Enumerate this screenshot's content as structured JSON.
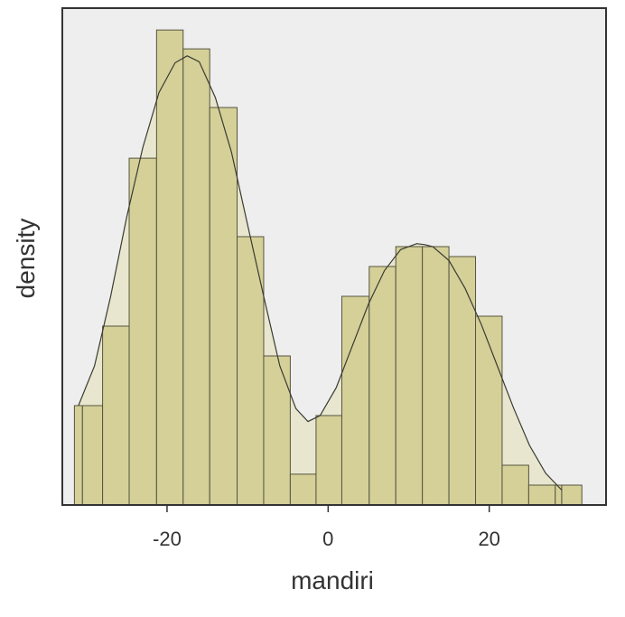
{
  "chart_data": {
    "type": "histogram",
    "xlabel": "mandiri",
    "ylabel": "density",
    "xlim": [
      -33,
      34.5
    ],
    "ylim": [
      0,
      0.05
    ],
    "x_ticks": [
      "-20",
      "0",
      "20"
    ],
    "x_tick_values": [
      -20,
      0,
      20
    ],
    "bins": [
      {
        "start": -31.5,
        "end": -30.5,
        "value": 0.01
      },
      {
        "start": -30.5,
        "end": -28.0,
        "value": 0.01
      },
      {
        "start": -28.0,
        "end": -24.7,
        "value": 0.018
      },
      {
        "start": -24.7,
        "end": -21.3,
        "value": 0.0349
      },
      {
        "start": -21.3,
        "end": -18.0,
        "value": 0.0478
      },
      {
        "start": -18.0,
        "end": -14.7,
        "value": 0.0459
      },
      {
        "start": -14.7,
        "end": -11.3,
        "value": 0.04
      },
      {
        "start": -11.3,
        "end": -8.0,
        "value": 0.027
      },
      {
        "start": -8.0,
        "end": -4.7,
        "value": 0.015
      },
      {
        "start": -4.7,
        "end": -1.5,
        "value": 0.0031
      },
      {
        "start": -1.5,
        "end": 1.7,
        "value": 0.009
      },
      {
        "start": 1.7,
        "end": 5.1,
        "value": 0.021
      },
      {
        "start": 5.1,
        "end": 8.4,
        "value": 0.024
      },
      {
        "start": 8.4,
        "end": 11.7,
        "value": 0.026
      },
      {
        "start": 11.7,
        "end": 15.0,
        "value": 0.026
      },
      {
        "start": 15.0,
        "end": 18.3,
        "value": 0.025
      },
      {
        "start": 18.3,
        "end": 21.6,
        "value": 0.019
      },
      {
        "start": 21.6,
        "end": 24.9,
        "value": 0.004
      },
      {
        "start": 24.9,
        "end": 28.2,
        "value": 0.002
      },
      {
        "start": 28.2,
        "end": 29.0,
        "value": 0.002
      },
      {
        "start": 29.0,
        "end": 31.5,
        "value": 0.002
      }
    ],
    "density_curve": {
      "x": [
        -31,
        -29,
        -27,
        -25,
        -23,
        -21,
        -19,
        -17.5,
        -16,
        -14,
        -12,
        -10,
        -8,
        -6,
        -4,
        -2.5,
        -1,
        1,
        3,
        5,
        7,
        9,
        11,
        12,
        13,
        15,
        17,
        19,
        21,
        23,
        25,
        27,
        29
      ],
      "y": [
        0.01,
        0.014,
        0.021,
        0.029,
        0.036,
        0.0415,
        0.0445,
        0.0452,
        0.0446,
        0.041,
        0.0355,
        0.0282,
        0.021,
        0.014,
        0.0097,
        0.0084,
        0.009,
        0.0118,
        0.016,
        0.0202,
        0.0236,
        0.0257,
        0.0263,
        0.0262,
        0.026,
        0.0246,
        0.0218,
        0.0182,
        0.014,
        0.0098,
        0.006,
        0.0032,
        0.0015
      ]
    },
    "grid": false,
    "legend": "none"
  },
  "colors": {
    "panel_background": "#eeeeee",
    "bar_fill": "#d4d098",
    "bar_stroke": "#565440",
    "density_fill": "#e8e6ce",
    "density_line": "#3a3a32",
    "axis": "#333333",
    "text": "#333333"
  }
}
